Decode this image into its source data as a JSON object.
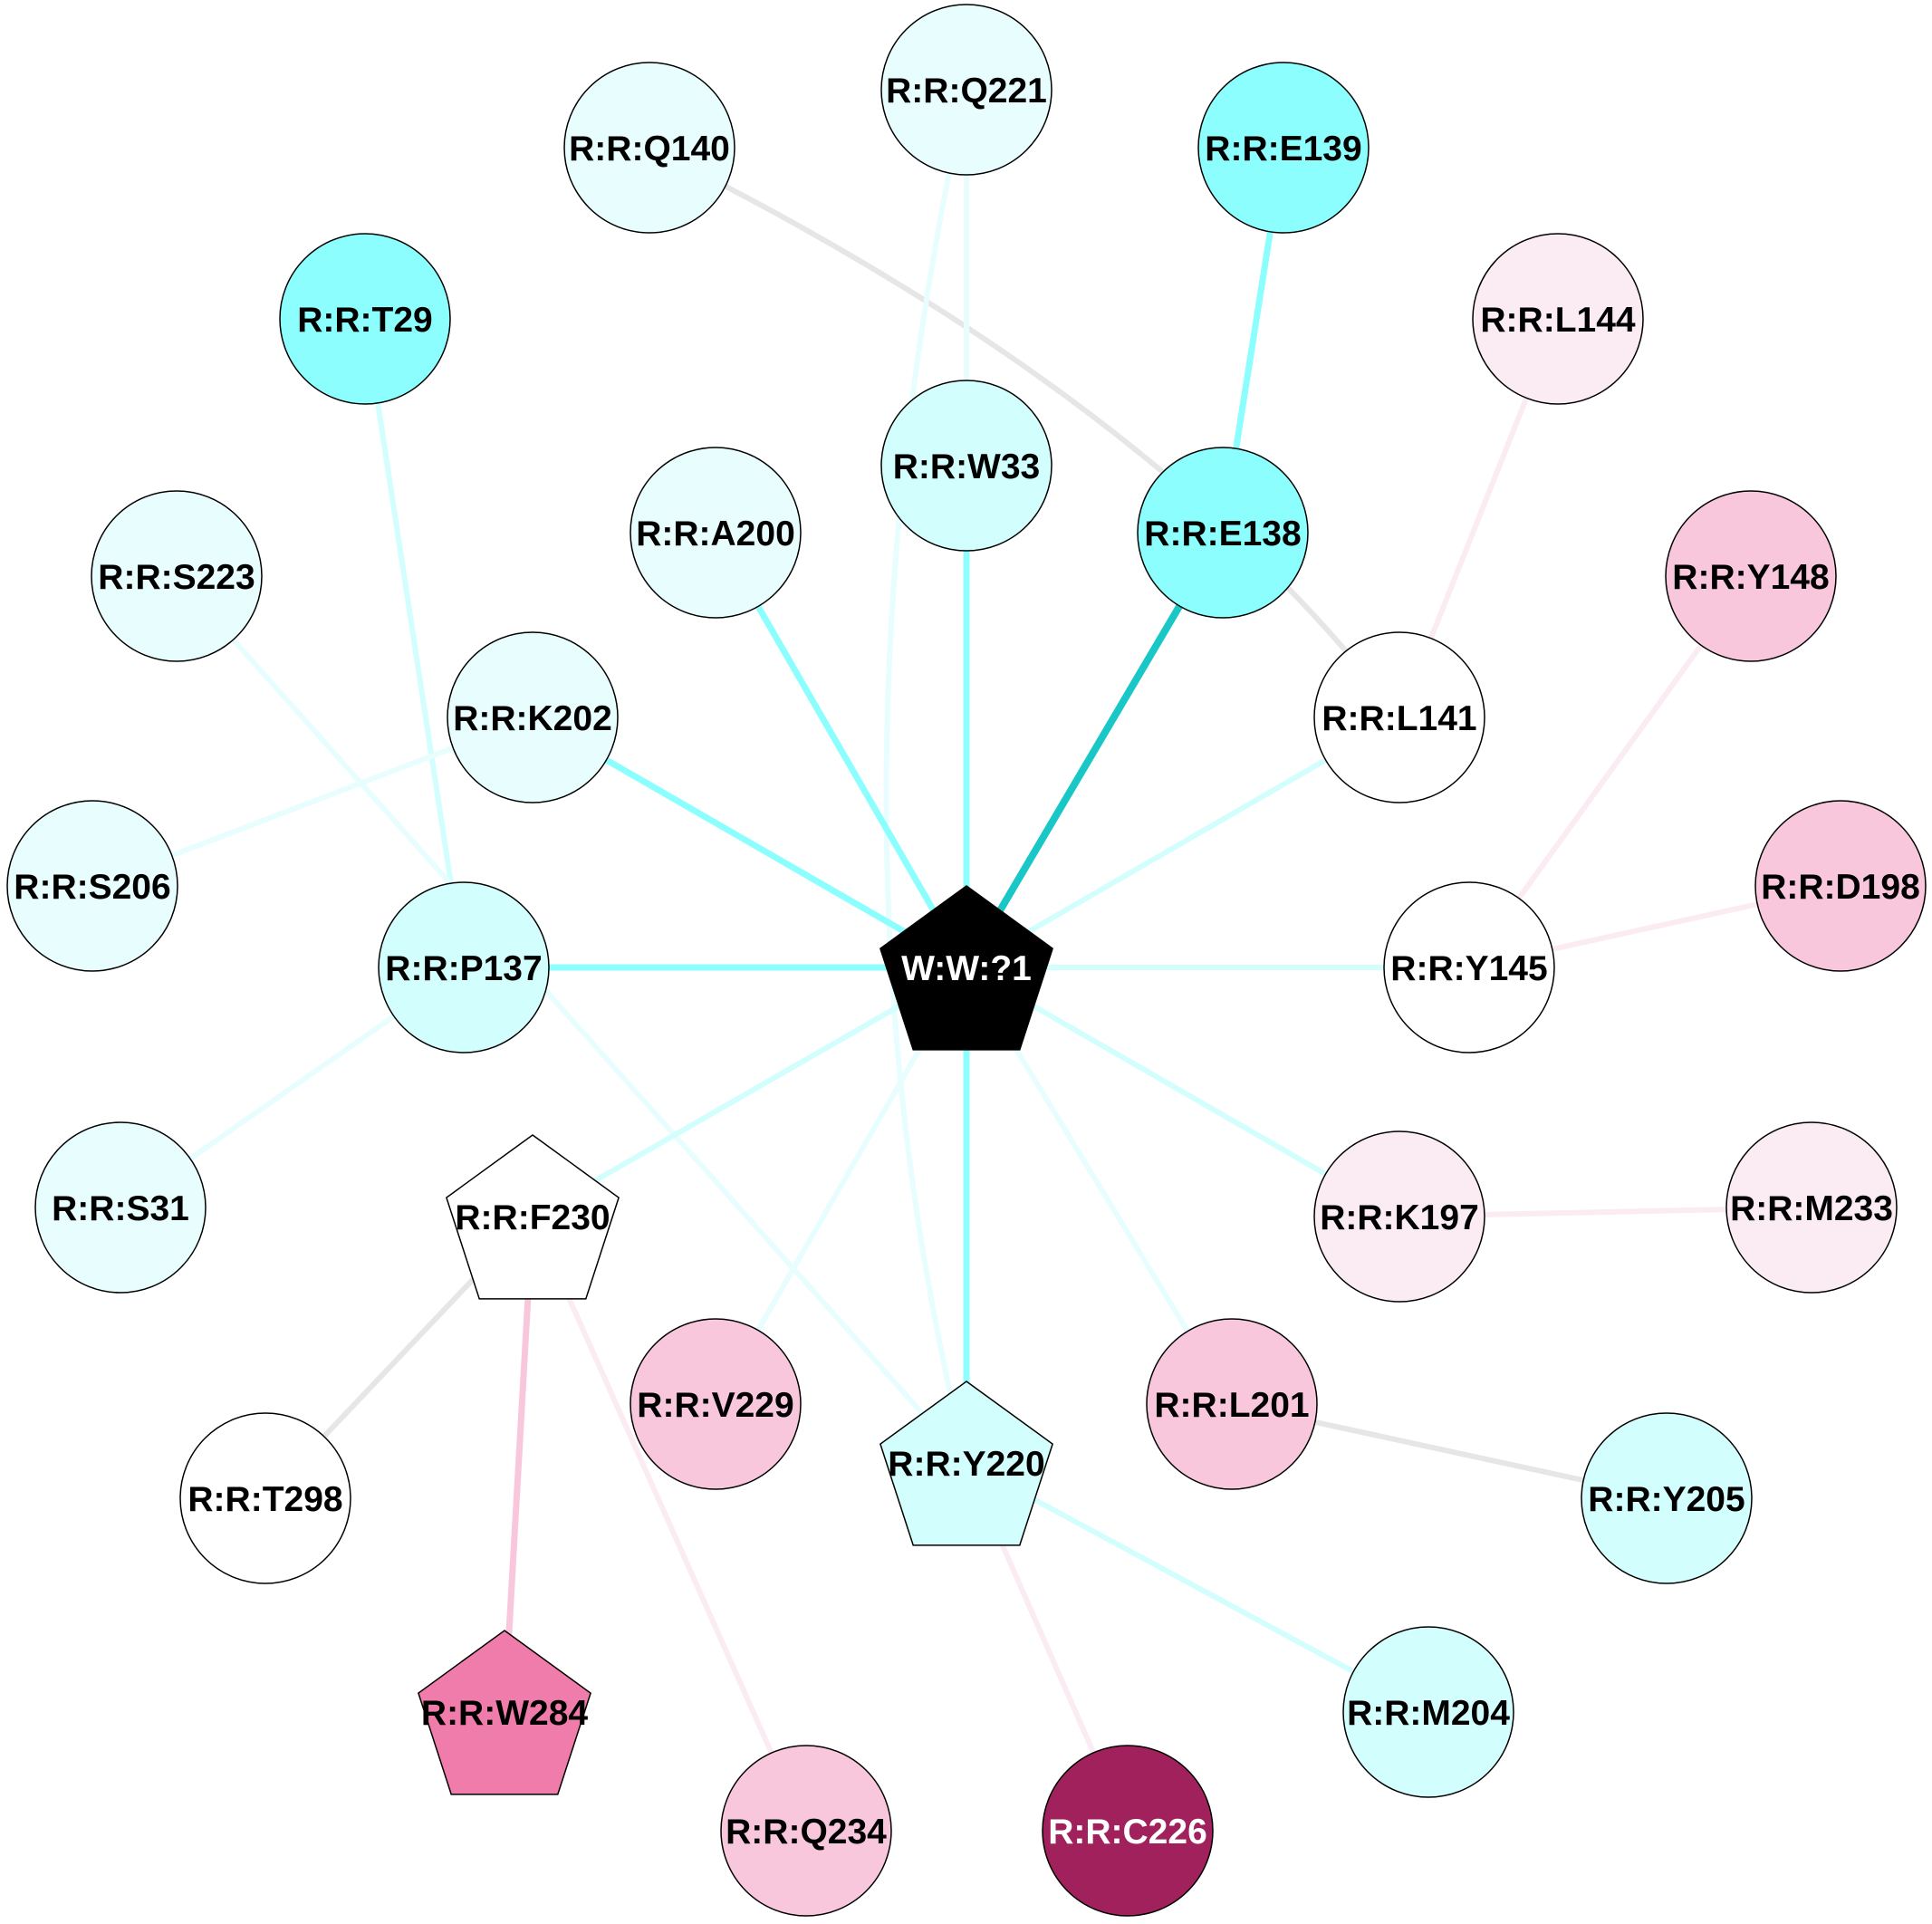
{
  "nodes": [
    {
      "id": "W:W:?1",
      "label": "W:W:?1",
      "shape": "pentagon",
      "fill": "#000000",
      "text": "#ffffff"
    },
    {
      "id": "R:R:Q140",
      "label": "R:R:Q140",
      "shape": "circle",
      "fill": "#e8fefe",
      "text": "#000000"
    },
    {
      "id": "R:R:Q221",
      "label": "R:R:Q221",
      "shape": "circle",
      "fill": "#e8fefe",
      "text": "#000000"
    },
    {
      "id": "R:R:E139",
      "label": "R:R:E139",
      "shape": "circle",
      "fill": "#8cfefe",
      "text": "#000000"
    },
    {
      "id": "R:R:T29",
      "label": "R:R:T29",
      "shape": "circle",
      "fill": "#8cfefe",
      "text": "#000000"
    },
    {
      "id": "R:R:L144",
      "label": "R:R:L144",
      "shape": "circle",
      "fill": "#fbebf3",
      "text": "#000000"
    },
    {
      "id": "R:R:W33",
      "label": "R:R:W33",
      "shape": "circle",
      "fill": "#d3fefe",
      "text": "#000000"
    },
    {
      "id": "R:R:E138",
      "label": "R:R:E138",
      "shape": "circle",
      "fill": "#8cfefe",
      "text": "#000000"
    },
    {
      "id": "R:R:A200",
      "label": "R:R:A200",
      "shape": "circle",
      "fill": "#e8fefe",
      "text": "#000000"
    },
    {
      "id": "R:R:S223",
      "label": "R:R:S223",
      "shape": "circle",
      "fill": "#e8fefe",
      "text": "#000000"
    },
    {
      "id": "R:R:Y148",
      "label": "R:R:Y148",
      "shape": "circle",
      "fill": "#f8c7dc",
      "text": "#000000"
    },
    {
      "id": "R:R:K202",
      "label": "R:R:K202",
      "shape": "circle",
      "fill": "#e8fefe",
      "text": "#000000"
    },
    {
      "id": "R:R:L141",
      "label": "R:R:L141",
      "shape": "circle",
      "fill": "#ffffff",
      "text": "#000000"
    },
    {
      "id": "R:R:S206",
      "label": "R:R:S206",
      "shape": "circle",
      "fill": "#e8fefe",
      "text": "#000000"
    },
    {
      "id": "R:R:D198",
      "label": "R:R:D198",
      "shape": "circle",
      "fill": "#f8c7dc",
      "text": "#000000"
    },
    {
      "id": "R:R:P137",
      "label": "R:R:P137",
      "shape": "circle",
      "fill": "#d3fefe",
      "text": "#000000"
    },
    {
      "id": "R:R:Y145",
      "label": "R:R:Y145",
      "shape": "circle",
      "fill": "#ffffff",
      "text": "#000000"
    },
    {
      "id": "R:R:S31",
      "label": "R:R:S31",
      "shape": "circle",
      "fill": "#e8fefe",
      "text": "#000000"
    },
    {
      "id": "R:R:F230",
      "label": "R:R:F230",
      "shape": "pentagon",
      "fill": "#ffffff",
      "text": "#000000"
    },
    {
      "id": "R:R:K197",
      "label": "R:R:K197",
      "shape": "circle",
      "fill": "#fbebf3",
      "text": "#000000"
    },
    {
      "id": "R:R:M233",
      "label": "R:R:M233",
      "shape": "circle",
      "fill": "#fbebf3",
      "text": "#000000"
    },
    {
      "id": "R:R:V229",
      "label": "R:R:V229",
      "shape": "circle",
      "fill": "#f8c7dc",
      "text": "#000000"
    },
    {
      "id": "R:R:L201",
      "label": "R:R:L201",
      "shape": "circle",
      "fill": "#f8c7dc",
      "text": "#000000"
    },
    {
      "id": "R:R:Y220",
      "label": "R:R:Y220",
      "shape": "pentagon",
      "fill": "#d3fefe",
      "text": "#000000"
    },
    {
      "id": "R:R:T298",
      "label": "R:R:T298",
      "shape": "circle",
      "fill": "#ffffff",
      "text": "#000000"
    },
    {
      "id": "R:R:Y205",
      "label": "R:R:Y205",
      "shape": "circle",
      "fill": "#d3fefe",
      "text": "#000000"
    },
    {
      "id": "R:R:W284",
      "label": "R:R:W284",
      "shape": "pentagon",
      "fill": "#f07cab",
      "text": "#000000"
    },
    {
      "id": "R:R:M204",
      "label": "R:R:M204",
      "shape": "circle",
      "fill": "#d3fefe",
      "text": "#000000"
    },
    {
      "id": "R:R:Q234",
      "label": "R:R:Q234",
      "shape": "circle",
      "fill": "#f8c7dc",
      "text": "#000000"
    },
    {
      "id": "R:R:C226",
      "label": "R:R:C226",
      "shape": "circle",
      "fill": "#a0215c",
      "text": "#ffffff"
    }
  ],
  "edges": [
    {
      "from": "R:R:Q140",
      "to": "R:R:L141",
      "color": "#e6e6e6",
      "weight": "medium",
      "curved": true
    },
    {
      "from": "R:R:Q221",
      "to": "R:R:Y220",
      "color": "#e8fefe",
      "weight": "medium",
      "curved": true
    },
    {
      "from": "R:R:Q221",
      "to": "R:R:W33",
      "color": "#e8fefe",
      "weight": "medium",
      "curved": false
    },
    {
      "from": "R:R:E139",
      "to": "R:R:E138",
      "color": "#8cfefe",
      "weight": "heavy",
      "curved": false
    },
    {
      "from": "R:R:T29",
      "to": "R:R:P137",
      "color": "#d3fefe",
      "weight": "medium",
      "curved": false
    },
    {
      "from": "R:R:L144",
      "to": "R:R:L141",
      "color": "#fbebf3",
      "weight": "medium",
      "curved": false
    },
    {
      "from": "R:R:W33",
      "to": "W:W:?1",
      "color": "#8cfefe",
      "weight": "heavy",
      "curved": false
    },
    {
      "from": "R:R:E138",
      "to": "W:W:?1",
      "color": "#1ac7c7",
      "weight": "strong",
      "curved": false
    },
    {
      "from": "R:R:A200",
      "to": "W:W:?1",
      "color": "#8cfefe",
      "weight": "heavy",
      "curved": false
    },
    {
      "from": "R:R:S223",
      "to": "R:R:Y220",
      "color": "#e8fefe",
      "weight": "medium",
      "curved": false
    },
    {
      "from": "R:R:Y148",
      "to": "R:R:Y145",
      "color": "#fbebf3",
      "weight": "medium",
      "curved": false
    },
    {
      "from": "R:R:K202",
      "to": "W:W:?1",
      "color": "#8cfefe",
      "weight": "heavy",
      "curved": false
    },
    {
      "from": "R:R:K202",
      "to": "R:R:S206",
      "color": "#e8fefe",
      "weight": "medium",
      "curved": false
    },
    {
      "from": "R:R:L141",
      "to": "W:W:?1",
      "color": "#d3fefe",
      "weight": "medium",
      "curved": false
    },
    {
      "from": "R:R:D198",
      "to": "R:R:Y145",
      "color": "#fbebf3",
      "weight": "medium",
      "curved": false
    },
    {
      "from": "R:R:P137",
      "to": "W:W:?1",
      "color": "#8cfefe",
      "weight": "heavy",
      "curved": false
    },
    {
      "from": "R:R:Y145",
      "to": "W:W:?1",
      "color": "#d3fefe",
      "weight": "medium",
      "curved": false
    },
    {
      "from": "R:R:S31",
      "to": "R:R:P137",
      "color": "#e8fefe",
      "weight": "medium",
      "curved": false
    },
    {
      "from": "R:R:F230",
      "to": "W:W:?1",
      "color": "#d3fefe",
      "weight": "medium",
      "curved": false
    },
    {
      "from": "R:R:K197",
      "to": "W:W:?1",
      "color": "#d3fefe",
      "weight": "medium",
      "curved": false
    },
    {
      "from": "R:R:K197",
      "to": "R:R:M233",
      "color": "#fbebf3",
      "weight": "medium",
      "curved": false
    },
    {
      "from": "R:R:V229",
      "to": "W:W:?1",
      "color": "#e8fefe",
      "weight": "medium",
      "curved": false
    },
    {
      "from": "R:R:L201",
      "to": "W:W:?1",
      "color": "#e8fefe",
      "weight": "medium",
      "curved": false
    },
    {
      "from": "R:R:L201",
      "to": "R:R:Y205",
      "color": "#e6e6e6",
      "weight": "medium",
      "curved": false
    },
    {
      "from": "R:R:Y220",
      "to": "W:W:?1",
      "color": "#8cfefe",
      "weight": "heavy",
      "curved": false
    },
    {
      "from": "R:R:Y220",
      "to": "R:R:M204",
      "color": "#d3fefe",
      "weight": "medium",
      "curved": false
    },
    {
      "from": "R:R:Y220",
      "to": "R:R:C226",
      "color": "#fbebf3",
      "weight": "medium",
      "curved": false
    },
    {
      "from": "R:R:F230",
      "to": "R:R:T298",
      "color": "#e6e6e6",
      "weight": "medium",
      "curved": false
    },
    {
      "from": "R:R:F230",
      "to": "R:R:W284",
      "color": "#f8c7dc",
      "weight": "heavy",
      "curved": false
    },
    {
      "from": "R:R:F230",
      "to": "R:R:Q234",
      "color": "#fbebf3",
      "weight": "medium",
      "curved": false
    }
  ]
}
